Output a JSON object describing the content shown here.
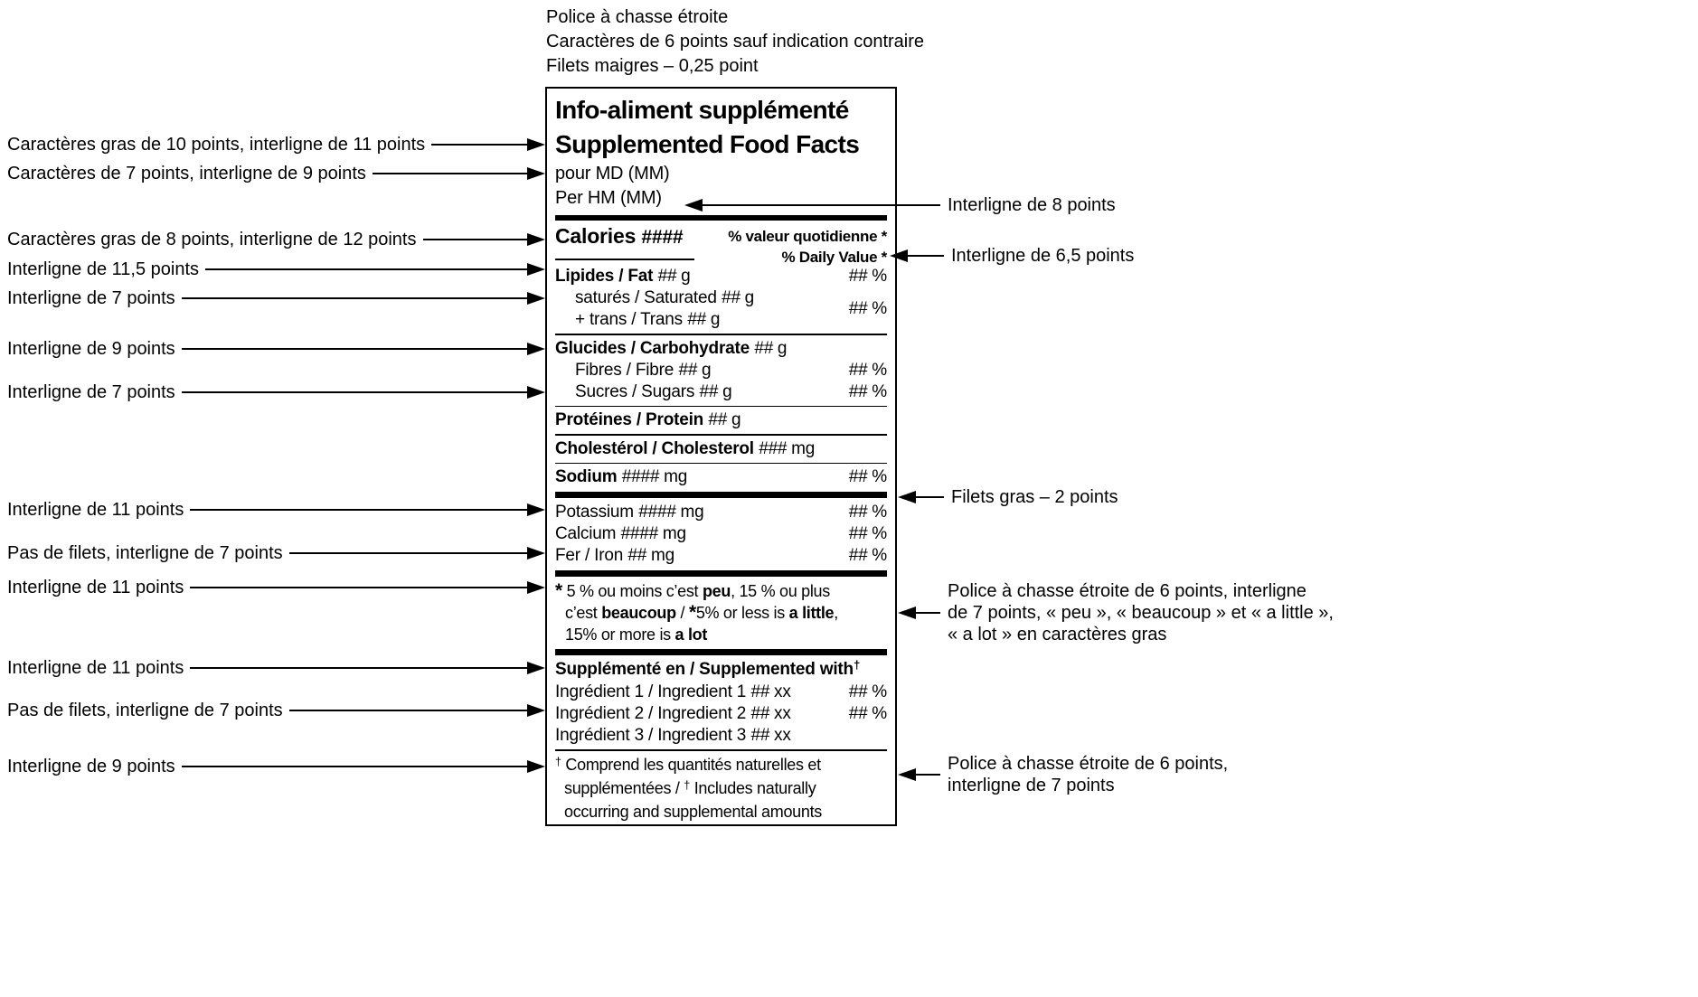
{
  "top_notes": {
    "lines": [
      "Police à chasse étroite",
      "Caractères de 6 points sauf indication contraire",
      "Filets maigres – 0,25 point"
    ]
  },
  "left_annotations": [
    {
      "text": "Caractères gras de 10 points, interligne de 11 points"
    },
    {
      "text": "Caractères de 7 points, interligne de 9 points"
    },
    {
      "text": "Caractères gras de 8 points, interligne de 12 points"
    },
    {
      "text": "Interligne de 11,5 points"
    },
    {
      "text": "Interligne de 7 points"
    },
    {
      "text": "Interligne de 9 points"
    },
    {
      "text": "Interligne de 7 points"
    },
    {
      "text": "Interligne de 11 points"
    },
    {
      "text": "Pas de filets, interligne de 7 points"
    },
    {
      "text": "Interligne de 11 points"
    },
    {
      "text": "Interligne de 11 points"
    },
    {
      "text": "Pas de filets, interligne de 7 points"
    },
    {
      "text": "Interligne de 9 points"
    }
  ],
  "right_annotations": [
    {
      "lines": [
        "Interligne de 8 points"
      ]
    },
    {
      "lines": [
        "Interligne de 6,5 points"
      ]
    },
    {
      "lines": [
        "Filets gras – 2 points"
      ]
    },
    {
      "lines": [
        "Police à chasse étroite de 6 points, interligne",
        "de 7 points, « peu », « beaucoup » et « a little »,",
        "« a lot » en caractères gras"
      ]
    },
    {
      "lines": [
        "Police à chasse étroite de 6 points,",
        "interligne de 7 points"
      ]
    }
  ],
  "panel": {
    "title_fr": "Info-aliment supplémenté",
    "title_en": "Supplemented Food Facts",
    "serving_fr": "pour MD (MM)",
    "serving_en": "Per HM (MM)",
    "calories_label": "Calories",
    "calories_value": "####",
    "dv_header_fr": "% valeur quotidienne *",
    "dv_header_en": "% Daily Value *",
    "rows": [
      {
        "type": "row",
        "parts": [
          {
            "t": "Lipides / Fat ",
            "s": "b"
          },
          {
            "t": "##",
            "s": "i"
          },
          {
            "t": " g",
            "s": "n"
          }
        ],
        "dv": [
          {
            "t": "##",
            "s": "i"
          },
          {
            "t": " %",
            "s": "n"
          }
        ]
      },
      {
        "type": "double",
        "lines": [
          [
            {
              "t": "saturés / Saturated ",
              "s": "n"
            },
            {
              "t": "##",
              "s": "i"
            },
            {
              "t": " g",
              "s": "n"
            }
          ],
          [
            {
              "t": "+ trans / Trans ",
              "s": "n"
            },
            {
              "t": "##",
              "s": "i"
            },
            {
              "t": " g",
              "s": "n"
            }
          ]
        ],
        "dv": [
          {
            "t": "##",
            "s": "i"
          },
          {
            "t": " %",
            "s": "n"
          }
        ]
      },
      {
        "type": "rule",
        "w": "thin"
      },
      {
        "type": "row",
        "parts": [
          {
            "t": "Glucides / Carbohydrate ",
            "s": "b"
          },
          {
            "t": "##",
            "s": "i"
          },
          {
            "t": " g",
            "s": "n"
          }
        ]
      },
      {
        "type": "row",
        "indent": true,
        "parts": [
          {
            "t": "Fibres / Fibre ",
            "s": "n"
          },
          {
            "t": "##",
            "s": "i"
          },
          {
            "t": " g",
            "s": "n"
          }
        ],
        "dv": [
          {
            "t": "##",
            "s": "i"
          },
          {
            "t": " %",
            "s": "n"
          }
        ]
      },
      {
        "type": "row",
        "indent": true,
        "parts": [
          {
            "t": "Sucres / Sugars ",
            "s": "n"
          },
          {
            "t": "##",
            "s": "i"
          },
          {
            "t": " g",
            "s": "n"
          }
        ],
        "dv": [
          {
            "t": "##",
            "s": "i"
          },
          {
            "t": " %",
            "s": "n"
          }
        ]
      },
      {
        "type": "rule",
        "w": "thin"
      },
      {
        "type": "row",
        "parts": [
          {
            "t": "Protéines / Protein ",
            "s": "b"
          },
          {
            "t": "##",
            "s": "i"
          },
          {
            "t": " g",
            "s": "n"
          }
        ]
      },
      {
        "type": "rule",
        "w": "thin"
      },
      {
        "type": "row",
        "parts": [
          {
            "t": "Cholestérol / Cholesterol ",
            "s": "b"
          },
          {
            "t": "###",
            "s": "i"
          },
          {
            "t": " mg",
            "s": "n"
          }
        ]
      },
      {
        "type": "rule",
        "w": "thin"
      },
      {
        "type": "row",
        "parts": [
          {
            "t": "Sodium ",
            "s": "b"
          },
          {
            "t": "####",
            "s": "i"
          },
          {
            "t": " mg",
            "s": "n"
          }
        ],
        "dv": [
          {
            "t": "##",
            "s": "i"
          },
          {
            "t": " %",
            "s": "n"
          }
        ]
      },
      {
        "type": "rule",
        "w": "thick"
      },
      {
        "type": "row",
        "parts": [
          {
            "t": "Potassium ",
            "s": "n"
          },
          {
            "t": "####",
            "s": "i"
          },
          {
            "t": " mg",
            "s": "n"
          }
        ],
        "dv": [
          {
            "t": "##",
            "s": "i"
          },
          {
            "t": " %",
            "s": "n"
          }
        ]
      },
      {
        "type": "row",
        "parts": [
          {
            "t": "Calcium ",
            "s": "n"
          },
          {
            "t": "####",
            "s": "i"
          },
          {
            "t": " mg",
            "s": "n"
          }
        ],
        "dv": [
          {
            "t": "##",
            "s": "i"
          },
          {
            "t": " %",
            "s": "n"
          }
        ]
      },
      {
        "type": "row",
        "parts": [
          {
            "t": "Fer / Iron ",
            "s": "n"
          },
          {
            "t": "##",
            "s": "i"
          },
          {
            "t": " mg",
            "s": "n"
          }
        ],
        "dv": [
          {
            "t": "##",
            "s": "i"
          },
          {
            "t": " %",
            "s": "n"
          }
        ]
      },
      {
        "type": "rule",
        "w": "thick"
      },
      {
        "type": "footnote",
        "lines": [
          [
            {
              "t": "*",
              "s": "st"
            },
            {
              "t": " 5 % ou moins c’est ",
              "s": "n"
            },
            {
              "t": "peu",
              "s": "b"
            },
            {
              "t": ", 15 % ou plus",
              "s": "n"
            }
          ],
          [
            {
              "t": "c’est ",
              "s": "n"
            },
            {
              "t": "beaucoup",
              "s": "b"
            },
            {
              "t": " / ",
              "s": "n"
            },
            {
              "t": "*",
              "s": "st"
            },
            {
              "t": "5% or less is ",
              "s": "n"
            },
            {
              "t": "a little",
              "s": "b"
            },
            {
              "t": ",",
              "s": "n"
            }
          ],
          [
            {
              "t": "15% or more is ",
              "s": "n"
            },
            {
              "t": "a lot",
              "s": "b"
            }
          ]
        ]
      },
      {
        "type": "rule",
        "w": "thick"
      },
      {
        "type": "row",
        "parts": [
          {
            "t": "Supplémenté en / Supplemented with",
            "s": "b"
          },
          {
            "t": "†",
            "s": "bsup"
          }
        ]
      },
      {
        "type": "row",
        "parts": [
          {
            "t": "Ingrédient 1 / Ingredient 1 ",
            "s": "n"
          },
          {
            "t": "##",
            "s": "i"
          },
          {
            "t": " xx",
            "s": "n"
          }
        ],
        "dv": [
          {
            "t": "##",
            "s": "i"
          },
          {
            "t": " %",
            "s": "n"
          }
        ]
      },
      {
        "type": "row",
        "parts": [
          {
            "t": "Ingrédient 2 / Ingredient 2 ",
            "s": "n"
          },
          {
            "t": "##",
            "s": "i"
          },
          {
            "t": " xx",
            "s": "n"
          }
        ],
        "dv": [
          {
            "t": "##",
            "s": "i"
          },
          {
            "t": " %",
            "s": "n"
          }
        ]
      },
      {
        "type": "row",
        "parts": [
          {
            "t": "Ingrédient 3 / Ingredient 3 ",
            "s": "n"
          },
          {
            "t": "##",
            "s": "i"
          },
          {
            "t": " xx",
            "s": "n"
          }
        ]
      },
      {
        "type": "rule",
        "w": "thin"
      },
      {
        "type": "footnote2",
        "lines": [
          [
            {
              "t": "†",
              "s": "sup"
            },
            {
              "t": " Comprend les quantités naturelles et",
              "s": "n"
            }
          ],
          [
            {
              "t": "supplémentées / ",
              "s": "n"
            },
            {
              "t": "†",
              "s": "sup"
            },
            {
              "t": " Includes naturally",
              "s": "n"
            }
          ],
          [
            {
              "t": "occurring and supplemental amounts",
              "s": "n"
            }
          ]
        ]
      }
    ]
  }
}
